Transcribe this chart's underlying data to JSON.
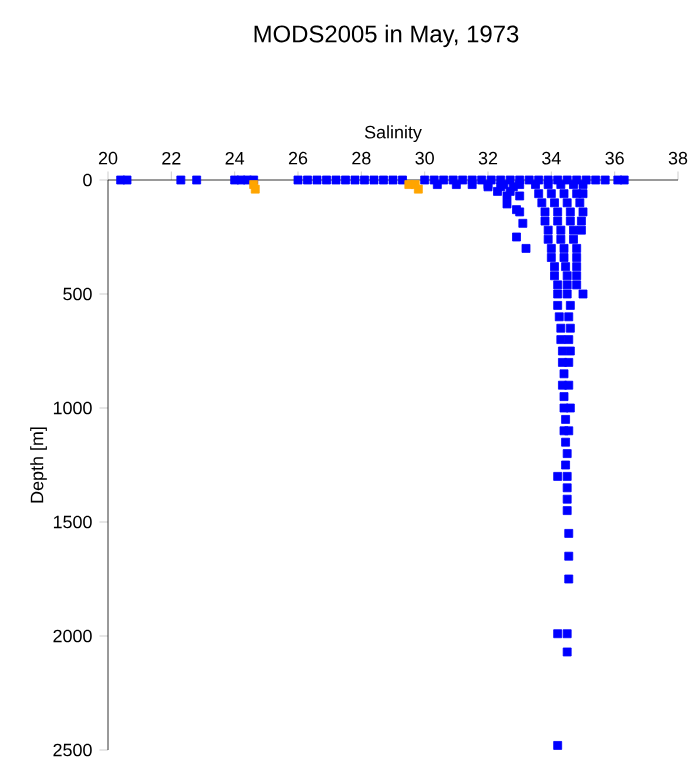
{
  "chart_data": {
    "type": "scatter",
    "title": "MODS2005 in May, 1973",
    "xlabel": "Salinity",
    "ylabel": "Depth [m]",
    "xlim": [
      20,
      38
    ],
    "xticks": [
      20,
      22,
      24,
      26,
      28,
      30,
      32,
      34,
      36,
      38
    ],
    "ylim": [
      2500,
      0
    ],
    "yticks": [
      0,
      500,
      1000,
      1500,
      2000,
      2500
    ],
    "marker": "square",
    "grid": false,
    "series": [
      {
        "color": "#0000ff",
        "x": [
          20.4,
          20.6,
          22.3,
          22.8,
          24.0,
          24.2,
          24.4,
          24.6,
          26.0,
          26.3,
          26.6,
          26.9,
          27.2,
          27.5,
          27.8,
          28.1,
          28.4,
          28.7,
          29.0,
          29.3,
          30.0,
          30.3,
          30.6,
          30.9,
          31.2,
          31.5,
          31.8,
          32.1,
          32.4,
          32.7,
          33.0,
          33.3,
          33.6,
          33.9,
          34.2,
          34.5,
          34.8,
          35.1,
          35.4,
          35.7,
          36.1,
          36.3,
          30.4,
          31.0,
          31.5,
          32.0,
          32.5,
          33.0,
          32.0,
          32.4,
          32.8,
          32.3,
          32.7,
          32.6,
          33.0,
          33.5,
          33.9,
          34.3,
          34.7,
          35.0,
          33.6,
          34.0,
          34.4,
          34.8,
          35.0,
          33.7,
          34.1,
          34.5,
          34.9,
          32.6,
          32.9,
          33.1,
          33.0,
          32.9,
          33.2,
          33.8,
          34.2,
          34.6,
          35.0,
          33.8,
          34.2,
          34.6,
          34.95,
          33.9,
          34.3,
          34.7,
          34.95,
          33.9,
          34.3,
          34.7,
          34.0,
          34.4,
          34.8,
          34.0,
          34.4,
          34.8,
          34.1,
          34.45,
          34.8,
          34.1,
          34.5,
          34.8,
          34.2,
          34.5,
          34.8,
          34.2,
          34.5,
          35.0,
          34.2,
          34.6,
          34.25,
          34.55,
          34.3,
          34.6,
          34.3,
          34.55,
          34.35,
          34.6,
          34.35,
          34.55,
          34.4,
          34.35,
          34.55,
          34.4,
          34.4,
          34.6,
          34.45,
          34.4,
          34.55,
          34.45,
          34.5,
          34.45,
          34.5,
          34.2,
          34.5,
          34.5,
          34.5,
          34.55,
          34.55,
          34.55,
          34.2,
          34.5,
          34.5,
          34.2
        ],
        "values": [
          0,
          0,
          0,
          0,
          0,
          0,
          0,
          0,
          0,
          0,
          0,
          0,
          0,
          0,
          0,
          0,
          0,
          0,
          0,
          0,
          0,
          0,
          0,
          0,
          0,
          0,
          0,
          0,
          0,
          0,
          0,
          0,
          0,
          0,
          0,
          0,
          0,
          0,
          0,
          0,
          0,
          0,
          20,
          20,
          20,
          20,
          20,
          20,
          30,
          30,
          30,
          50,
          50,
          70,
          70,
          20,
          20,
          20,
          20,
          20,
          60,
          60,
          60,
          60,
          60,
          100,
          100,
          100,
          100,
          105,
          130,
          190,
          140,
          250,
          300,
          140,
          140,
          140,
          140,
          180,
          180,
          180,
          180,
          220,
          220,
          220,
          220,
          260,
          260,
          260,
          300,
          300,
          300,
          340,
          340,
          340,
          380,
          380,
          380,
          420,
          420,
          420,
          460,
          460,
          460,
          500,
          500,
          500,
          550,
          550,
          600,
          600,
          650,
          650,
          700,
          700,
          750,
          750,
          800,
          800,
          850,
          900,
          900,
          950,
          1000,
          1000,
          1050,
          1100,
          1100,
          1150,
          1200,
          1250,
          1300,
          1300,
          1350,
          1400,
          1450,
          1550,
          1650,
          1750,
          1990,
          1990,
          2070,
          2480
        ]
      },
      {
        "color": "#ffa500",
        "x": [
          24.6,
          24.65,
          29.5,
          29.7,
          29.8
        ],
        "values": [
          20,
          40,
          20,
          20,
          40
        ]
      }
    ]
  }
}
